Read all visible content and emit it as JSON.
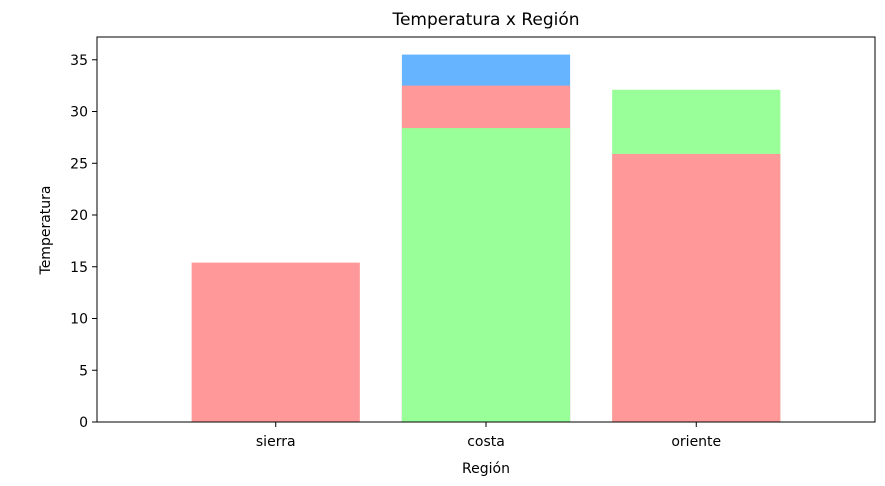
{
  "chart_data": {
    "type": "bar",
    "title": "Temperatura x Región",
    "xlabel": "Región",
    "ylabel": "Temperatura",
    "categories": [
      "sierra",
      "costa",
      "oriente"
    ],
    "ylim": [
      0,
      37.2
    ],
    "yticks": [
      0,
      5,
      10,
      15,
      20,
      25,
      30,
      35
    ],
    "grid": false,
    "bars": [
      {
        "category": "sierra",
        "value": 15.4,
        "color": "#ff9999"
      },
      {
        "category": "costa",
        "value": 35.5,
        "color": "#66b3ff"
      },
      {
        "category": "costa",
        "value": 32.5,
        "color": "#ff9999"
      },
      {
        "category": "costa",
        "value": 28.4,
        "color": "#99ff99"
      },
      {
        "category": "oriente",
        "value": 32.1,
        "color": "#99ff99"
      },
      {
        "category": "oriente",
        "value": 25.9,
        "color": "#ff9999"
      }
    ]
  }
}
